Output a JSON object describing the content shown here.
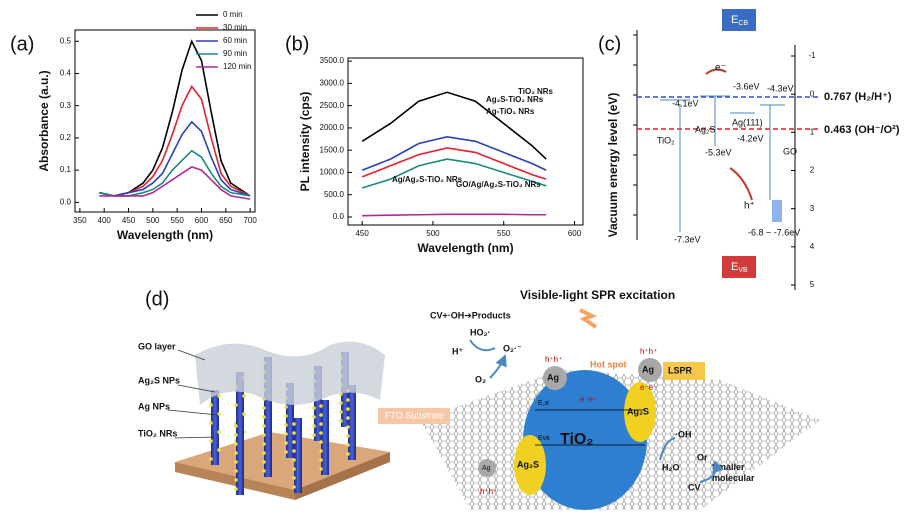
{
  "chart_data": [
    {
      "type": "line",
      "panel": "(a)",
      "x_label": "Wavelength (nm)",
      "y_label": "Absorbance (a.u.)",
      "x": [
        390,
        420,
        450,
        480,
        500,
        520,
        540,
        560,
        580,
        600,
        620,
        640,
        660,
        700
      ],
      "series": [
        {
          "name": "0 min",
          "color": "#000000",
          "values": [
            0.03,
            0.02,
            0.03,
            0.06,
            0.1,
            0.17,
            0.28,
            0.41,
            0.5,
            0.44,
            0.28,
            0.13,
            0.06,
            0.02
          ]
        },
        {
          "name": "30 min",
          "color": "#e8212b",
          "values": [
            0.03,
            0.02,
            0.03,
            0.05,
            0.08,
            0.13,
            0.21,
            0.3,
            0.36,
            0.32,
            0.2,
            0.09,
            0.05,
            0.02
          ]
        },
        {
          "name": "60 min",
          "color": "#2b3fc0",
          "values": [
            0.03,
            0.02,
            0.03,
            0.04,
            0.06,
            0.09,
            0.15,
            0.21,
            0.25,
            0.22,
            0.14,
            0.07,
            0.04,
            0.02
          ]
        },
        {
          "name": "90 min",
          "color": "#1a8a80",
          "values": [
            0.03,
            0.02,
            0.02,
            0.03,
            0.04,
            0.06,
            0.1,
            0.13,
            0.16,
            0.14,
            0.09,
            0.05,
            0.03,
            0.02
          ]
        },
        {
          "name": "120 min",
          "color": "#b0289a",
          "values": [
            0.02,
            0.02,
            0.02,
            0.02,
            0.03,
            0.05,
            0.07,
            0.09,
            0.11,
            0.1,
            0.07,
            0.04,
            0.02,
            0.01
          ]
        }
      ],
      "xlim": [
        340,
        710
      ],
      "ylim": [
        -0.03,
        0.535
      ],
      "xticks": [
        350,
        400,
        450,
        500,
        550,
        600,
        650,
        700
      ],
      "yticks": [
        {
          "value": 0,
          "label": "0.0"
        },
        0.1,
        0.2,
        0.3,
        0.4,
        0.5
      ],
      "legend": "upper right"
    },
    {
      "type": "line",
      "panel": "(b)",
      "x_label": "Wavelength (nm)",
      "y_label": "PL intensity (cps)",
      "x": [
        450,
        470,
        490,
        510,
        530,
        550,
        570,
        580
      ],
      "series": [
        {
          "name": "TiO₂ NRs",
          "color": "#000000",
          "values": [
            1700,
            2100,
            2600,
            2800,
            2600,
            2100,
            1600,
            1300
          ]
        },
        {
          "name": "Ag₂S-TiO₂ NRs",
          "color": "#2b3fc0",
          "values": [
            1050,
            1300,
            1650,
            1800,
            1700,
            1450,
            1200,
            1050
          ]
        },
        {
          "name": "Ag-TiO₂ NRs",
          "color": "#e8212b",
          "values": [
            900,
            1150,
            1400,
            1550,
            1450,
            1200,
            950,
            850
          ]
        },
        {
          "name": "Ag/Ag₂S-TiO₂ NRs",
          "color": "#1a8a80",
          "values": [
            650,
            850,
            1150,
            1300,
            1200,
            1000,
            800,
            700
          ]
        },
        {
          "name": "GO/Ag/Ag₂S-TiO₂ NRs",
          "color": "#b0289a",
          "values": [
            30,
            40,
            50,
            60,
            60,
            60,
            50,
            50
          ]
        }
      ],
      "xlim": [
        440,
        606
      ],
      "ylim": [
        -180,
        3570
      ],
      "xticks": [
        450,
        500,
        550,
        600
      ],
      "yticks": [
        {
          "value": 0,
          "label": "0.0"
        },
        {
          "value": 500,
          "label": "500.0"
        },
        {
          "value": 1000,
          "label": "1000.0"
        },
        {
          "value": 1500,
          "label": "1500.0"
        },
        {
          "value": 2000,
          "label": "2000.0"
        },
        {
          "value": 2500,
          "label": "2500.0"
        },
        {
          "value": 3000,
          "label": "3000.0"
        },
        {
          "value": 3500,
          "label": "3500.0"
        }
      ],
      "legend": "inline"
    }
  ],
  "panel_c": {
    "label": "(c)",
    "y_label": "Vacuum energy level (eV)",
    "ecb": {
      "main": "E",
      "sub": "CB"
    },
    "evb": {
      "main": "E",
      "sub": "VB"
    },
    "ylim": [
      -1,
      5
    ],
    "yticks": [
      -1,
      0,
      1,
      2,
      3,
      4,
      5
    ],
    "levels": [
      "-3.6eV",
      "-4.1eV",
      "-5.3eV",
      "-7.3eV",
      "-4.2eV",
      "-4.3eV",
      "-6.8 ~ -7.6eV"
    ],
    "materials": [
      "TiO₂",
      "Ag₂S",
      "Ag(111)",
      "GO"
    ],
    "electron": "e⁻",
    "hole": "h⁺",
    "potentials": [
      "0.767 (H₂/H⁺)",
      "0.463 (OH⁻/O²)"
    ]
  },
  "panel_d": {
    "label": "(d)",
    "title": "Visible-light SPR excitation",
    "left_labels": [
      "GO layer",
      "Ag₂S NPs",
      "Ag NPs",
      "TiO₂ NRs"
    ],
    "reaction": "CV+·OH➔Products",
    "ho2": "HO₂·",
    "hplus": "H⁺",
    "o2rad": "O₂·⁻",
    "o2": "O₂",
    "hot_spot": "Hot spot",
    "lspr": "LSPR",
    "fto": "FTO Substrate",
    "tio2": "TiO₂",
    "ag2s": "Ag₂S",
    "ag": "Ag",
    "ecb": "E꜀ʙ",
    "evb": "Eᴠʙ",
    "oh": "·OH",
    "or": "Or",
    "h2o": "H₂O",
    "cv": "CV",
    "smaller": "Smaller\nmolecular",
    "holes": "h⁺h⁺",
    "electrons": "e⁻e⁻"
  }
}
